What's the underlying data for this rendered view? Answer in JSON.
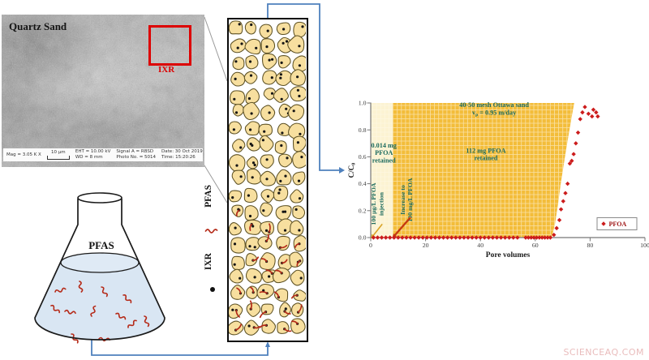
{
  "sem": {
    "label": "Quartz Sand",
    "ixr_box_label": "IXR",
    "metadata": {
      "mag": "Mag = 3.05 K X",
      "scale_bar": "10 µm",
      "eht": "EHT = 10.00 kV",
      "wd": "WD = 8 mm",
      "signal": "Signal A = RBSD",
      "photo_no": "Photo No. = 5014",
      "date": "Date: 30 Oct 2019",
      "time": "Time: 15:20:26"
    }
  },
  "column": {
    "legend": [
      {
        "label": "PFAS",
        "marker": "red-squiggle"
      },
      {
        "label": "IXR",
        "marker": "black-dot"
      }
    ]
  },
  "flask": {
    "label": "PFAS"
  },
  "colors": {
    "tube_blue": "#4f81bd",
    "grain_fill": "#f7df9f",
    "grain_stroke": "#5d5124",
    "ixr_dot": "#141414",
    "pfas_red": "#b52a18",
    "sem_box_red": "#dd0000",
    "chart_orange": "#f3bd3a",
    "chart_light_band": "#fcf3d2",
    "annotation_teal": "#1b6a5e",
    "point_red": "#cc1c1c",
    "legend_text_red": "#9e1313",
    "watermark_pink": "#e9bcbc"
  },
  "chart_data": {
    "type": "scatter",
    "xlabel": "Pore volumes",
    "ylabel": "C/C0",
    "xlim": [
      0,
      100
    ],
    "ylim": [
      0,
      1
    ],
    "xticks": [
      0,
      20,
      40,
      60,
      80,
      100
    ],
    "yticks": [
      0,
      0.2,
      0.4,
      0.6,
      0.8,
      1
    ],
    "grid": true,
    "legend": {
      "label": "PFOA",
      "marker": "diamond",
      "position": "lower right"
    },
    "annotations": [
      {
        "lines": [
          "40-50 mesh Ottawa sand",
          "vp = 0.95 m/day"
        ],
        "x": 45,
        "y": 0.97,
        "rotate": 0
      },
      {
        "lines": [
          "0.014 mg",
          "PFOA",
          "retained"
        ],
        "x": 4.8,
        "y": 0.67,
        "rotate": 0
      },
      {
        "lines": [
          "112 mg PFOA",
          "retained"
        ],
        "x": 42,
        "y": 0.63,
        "rotate": 0
      },
      {
        "lines": [
          "100 µg/L PFOA",
          "injection"
        ],
        "x": 3.2,
        "y": 0.25,
        "rotate": -90
      },
      {
        "lines": [
          "Increase to",
          "100 mg/L PFOA"
        ],
        "x": 13.8,
        "y": 0.28,
        "rotate": -90
      }
    ],
    "regions": {
      "light_band": {
        "x0": 0,
        "x1": 8,
        "color": "#fcf3d2"
      },
      "orange_color": "#f3bd3a",
      "boundary": [
        [
          8,
          0
        ],
        [
          66,
          0
        ],
        [
          67.2,
          0.1
        ],
        [
          68.3,
          0.25
        ],
        [
          69.3,
          0.4
        ],
        [
          70.3,
          0.53
        ],
        [
          71.3,
          0.66
        ],
        [
          72.3,
          0.78
        ],
        [
          73.3,
          0.9
        ],
        [
          74.2,
          1
        ],
        [
          8,
          1
        ]
      ]
    },
    "arrows": [
      {
        "tail": [
          4.2,
          0.1
        ],
        "head": [
          0.8,
          0.012
        ],
        "color": "#d9a427",
        "width": 1.6
      },
      {
        "tail": [
          14.5,
          0.15
        ],
        "head": [
          8.7,
          0.015
        ],
        "color": "#c53a10",
        "width": 2.4
      }
    ],
    "series": [
      {
        "name": "PFOA",
        "marker": "diamond",
        "color": "#cc1c1c",
        "points": [
          [
            1,
            0
          ],
          [
            2.5,
            0
          ],
          [
            4,
            0
          ],
          [
            5.5,
            0
          ],
          [
            7,
            0
          ],
          [
            8.5,
            0
          ],
          [
            10,
            0
          ],
          [
            11.5,
            0
          ],
          [
            13,
            0
          ],
          [
            14.5,
            0
          ],
          [
            16,
            0
          ],
          [
            17.5,
            0
          ],
          [
            19,
            0
          ],
          [
            20.5,
            0
          ],
          [
            22,
            0
          ],
          [
            23.5,
            0
          ],
          [
            25,
            0
          ],
          [
            26.5,
            0
          ],
          [
            28,
            0
          ],
          [
            29.5,
            0
          ],
          [
            31,
            0
          ],
          [
            32.5,
            0
          ],
          [
            34,
            0
          ],
          [
            35.5,
            0
          ],
          [
            37,
            0
          ],
          [
            38.5,
            0
          ],
          [
            40,
            0
          ],
          [
            41.5,
            0
          ],
          [
            43,
            0
          ],
          [
            44.5,
            0
          ],
          [
            46,
            0
          ],
          [
            47.5,
            0
          ],
          [
            49,
            0
          ],
          [
            50.5,
            0
          ],
          [
            52,
            0
          ],
          [
            53.5,
            0
          ],
          [
            56.5,
            0
          ],
          [
            57.5,
            0
          ],
          [
            58.5,
            0
          ],
          [
            59.5,
            0
          ],
          [
            60.5,
            0
          ],
          [
            61.5,
            0
          ],
          [
            62.5,
            0
          ],
          [
            63.5,
            0
          ],
          [
            64.5,
            0
          ],
          [
            65.5,
            0
          ],
          [
            66.8,
            0.02
          ],
          [
            67.8,
            0.07
          ],
          [
            68.8,
            0.13
          ],
          [
            69.4,
            0.21
          ],
          [
            70.2,
            0.27
          ],
          [
            71,
            0.33
          ],
          [
            71.8,
            0.4
          ],
          [
            72.6,
            0.55
          ],
          [
            73.3,
            0.57
          ],
          [
            74,
            0.62
          ],
          [
            74.8,
            0.7
          ],
          [
            75.6,
            0.78
          ],
          [
            76.4,
            0.88
          ],
          [
            77.2,
            0.93
          ],
          [
            78.1,
            0.97
          ],
          [
            79.4,
            0.92
          ],
          [
            80.7,
            0.9
          ],
          [
            81.2,
            0.95
          ],
          [
            82.2,
            0.93
          ],
          [
            82.8,
            0.9
          ]
        ]
      }
    ]
  },
  "watermark": "SCIENCEAQ.COM"
}
